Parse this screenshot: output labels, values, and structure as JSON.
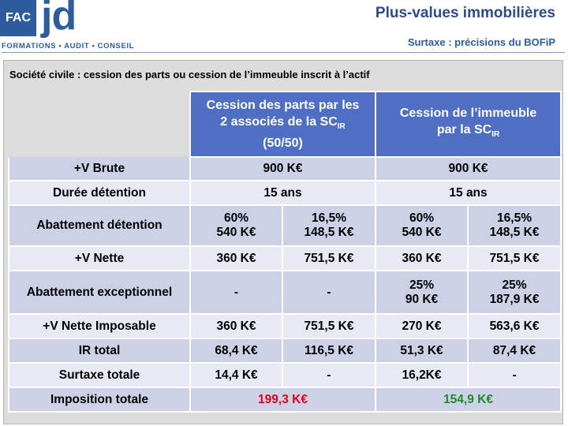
{
  "logo": {
    "fac": "FAC",
    "jd": "jd",
    "tagline": "FORMATIONS  •  AUDIT  •  CONSEIL"
  },
  "header": {
    "title": "Plus-values immobilières",
    "subtitle": "Surtaxe : précisions du BOFiP"
  },
  "section_title": "Société civile : cession des parts ou cession de l’immeuble inscrit à l’actif",
  "table": {
    "col1": {
      "line1": "Cession des parts par les",
      "line2a": "2 associés de la SC",
      "line2sub": "IR",
      "line3": "(50/50)"
    },
    "col2": {
      "line1": "Cession de l’immeuble",
      "line2a": "par la SC",
      "line2sub": "IR"
    },
    "rows": [
      {
        "label": "+V Brute",
        "left": "900 K€",
        "right": "900 K€"
      },
      {
        "label": "Durée détention",
        "left": "15 ans",
        "right": "15 ans"
      },
      {
        "label": "Abattement détention",
        "c1a": "60%",
        "c1b": "540 K€",
        "c2a": "16,5%",
        "c2b": "148,5 K€",
        "c3a": "60%",
        "c3b": "540 K€",
        "c4a": "16,5%",
        "c4b": "148,5 K€"
      },
      {
        "label": "+V Nette",
        "c1": "360 K€",
        "c2": "751,5 K€",
        "c3": "360 K€",
        "c4": "751,5 K€"
      },
      {
        "label": "Abattement exceptionnel",
        "c1": "-",
        "c2": "-",
        "c3a": "25%",
        "c3b": "90 K€",
        "c4a": "25%",
        "c4b": "187,9 K€"
      },
      {
        "label": "+V Nette Imposable",
        "c1": "360 K€",
        "c2": "751,5 K€",
        "c3": "270 K€",
        "c4": "563,6 K€"
      },
      {
        "label": "IR total",
        "c1": "68,4 K€",
        "c2": "116,5 K€",
        "c3": "51,3 K€",
        "c4": "87,4 K€"
      },
      {
        "label": "Surtaxe totale",
        "c1": "14,4 K€",
        "c2": "-",
        "c3": "16,2K€",
        "c4": "-"
      },
      {
        "label": "Imposition totale",
        "left": "199,3 K€",
        "right": "154,9 K€"
      }
    ]
  },
  "colors": {
    "header_blue": "#4f6fc4",
    "row_dark": "#cdd1e6",
    "row_light": "#e7e9f4",
    "total_left": "#e3001b",
    "total_right": "#1f8a2a"
  }
}
